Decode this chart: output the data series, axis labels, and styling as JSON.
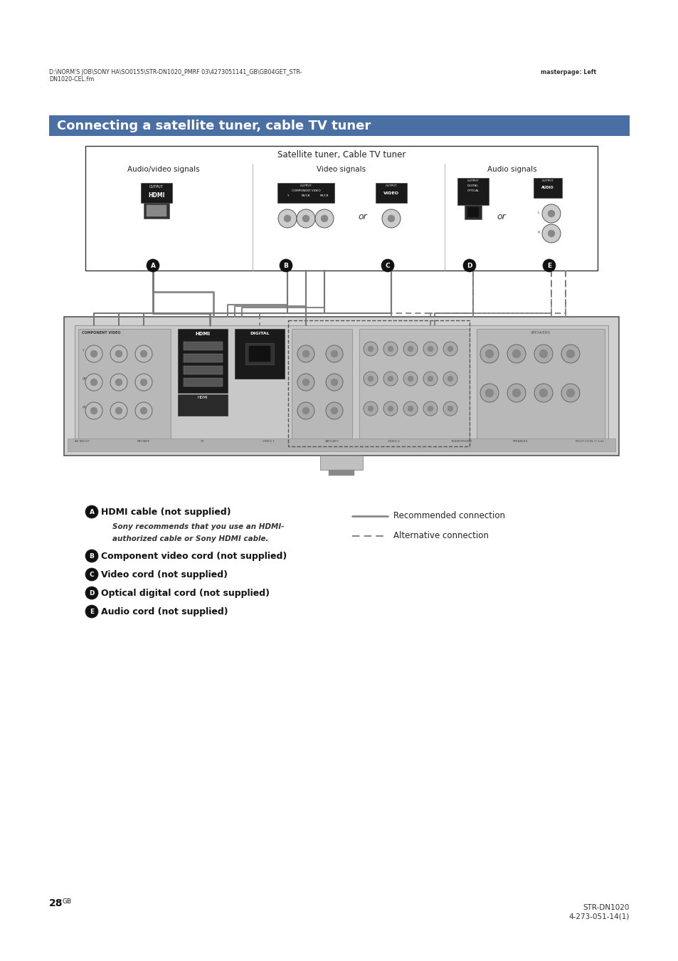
{
  "bg_color": "#ffffff",
  "page_width": 9.54,
  "page_height": 13.5,
  "header_text_left": "D:\\NORM'S JOB\\SONY HA\\SO0155\\STR-DN1020_PMRF 03\\4273051141_GB\\GB04GET_STR-\nDN1020-CEL.fm",
  "header_text_right": "masterpage: Left",
  "title": "Connecting a satellite tuner, cable TV tuner",
  "title_bg": "#4a6fa5",
  "title_fg": "#ffffff",
  "diagram_box_label": "Satellite tuner, Cable TV tuner",
  "legend_solid": "Recommended connection",
  "legend_dashed": "Alternative connection",
  "bullets": [
    {
      "letter": "A",
      "text": "HDMI cable (not supplied)",
      "sub": "Sony recommends that you use an HDMI-\nauthorized cable or Sony HDMI cable."
    },
    {
      "letter": "B",
      "text": "Component video cord (not supplied)",
      "sub": null
    },
    {
      "letter": "C",
      "text": "Video cord (not supplied)",
      "sub": null
    },
    {
      "letter": "D",
      "text": "Optical digital cord (not supplied)",
      "sub": null
    },
    {
      "letter": "E",
      "text": "Audio cord (not supplied)",
      "sub": null
    }
  ],
  "page_number": "28",
  "page_suffix": "GB",
  "footer_right_1": "STR-DN1020",
  "footer_right_2": "4-273-051-14(1)"
}
